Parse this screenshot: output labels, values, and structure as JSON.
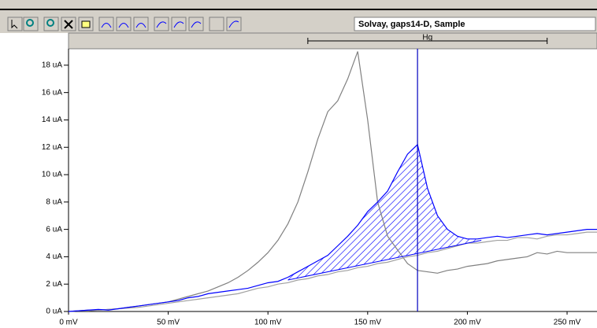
{
  "toolbar": {
    "sample_field": "Solvay, gaps14-D, Sample"
  },
  "chart_data": {
    "type": "line",
    "x": [
      0,
      5,
      10,
      15,
      20,
      25,
      30,
      35,
      40,
      45,
      50,
      55,
      60,
      65,
      70,
      75,
      80,
      85,
      90,
      95,
      100,
      105,
      110,
      115,
      120,
      125,
      130,
      135,
      140,
      145,
      150,
      155,
      160,
      165,
      170,
      175,
      180,
      185,
      190,
      195,
      200,
      205,
      210,
      215,
      220,
      225,
      230,
      235,
      240,
      245,
      250,
      255,
      260,
      265
    ],
    "series": [
      {
        "color": "#808080",
        "values": [
          0,
          0.05,
          0.1,
          0.1,
          0.15,
          0.2,
          0.3,
          0.4,
          0.5,
          0.6,
          0.7,
          0.9,
          1.1,
          1.3,
          1.5,
          1.8,
          2.1,
          2.5,
          3.0,
          3.6,
          4.3,
          5.2,
          6.4,
          8.0,
          10.2,
          12.6,
          14.6,
          15.4,
          17.0,
          19.0,
          14.0,
          8.0,
          5.5,
          4.5,
          3.5,
          3.0,
          2.9,
          2.8,
          3.0,
          3.1,
          3.3,
          3.4,
          3.5,
          3.7,
          3.8,
          3.9,
          4.0,
          4.3,
          4.2,
          4.4,
          4.3,
          4.3,
          4.3,
          4.3
        ]
      },
      {
        "color": "#a0a0a0",
        "values": [
          0,
          0.05,
          0.05,
          0.1,
          0.15,
          0.2,
          0.25,
          0.3,
          0.4,
          0.5,
          0.6,
          0.7,
          0.8,
          0.9,
          1.0,
          1.1,
          1.2,
          1.3,
          1.5,
          1.7,
          1.8,
          2.0,
          2.1,
          2.3,
          2.4,
          2.6,
          2.7,
          2.9,
          3.0,
          3.2,
          3.3,
          3.5,
          3.6,
          3.8,
          4.0,
          4.1,
          4.3,
          4.4,
          4.6,
          4.8,
          5.0,
          5.0,
          5.1,
          5.2,
          5.2,
          5.4,
          5.4,
          5.3,
          5.5,
          5.6,
          5.6,
          5.7,
          5.8,
          5.8
        ]
      },
      {
        "color": "#0000ff",
        "values": [
          0,
          0.05,
          0.1,
          0.15,
          0.1,
          0.2,
          0.3,
          0.4,
          0.5,
          0.6,
          0.7,
          0.8,
          1.0,
          1.1,
          1.3,
          1.4,
          1.5,
          1.6,
          1.7,
          1.9,
          2.1,
          2.2,
          2.5,
          2.9,
          3.3,
          3.7,
          4.1,
          4.8,
          5.5,
          6.3,
          7.3,
          8.0,
          8.8,
          10.2,
          11.5,
          12.2,
          9.0,
          7.0,
          6.0,
          5.5,
          5.3,
          5.3,
          5.4,
          5.5,
          5.4,
          5.5,
          5.6,
          5.7,
          5.6,
          5.7,
          5.8,
          5.9,
          6.0,
          6.0
        ]
      }
    ],
    "baseline": {
      "x": [
        110,
        207
      ],
      "values": [
        2.3,
        5.2
      ],
      "color": "#0000ff"
    },
    "marker_x": 175,
    "peak_label": "Hg",
    "peak_window": [
      120,
      240
    ],
    "xlim": [
      0,
      265
    ],
    "ylim": [
      0,
      19.2
    ],
    "xticks": [
      {
        "value": 0,
        "label": "0 mV"
      },
      {
        "value": 50,
        "label": "50 mV"
      },
      {
        "value": 100,
        "label": "100 mV"
      },
      {
        "value": 150,
        "label": "150 mV"
      },
      {
        "value": 200,
        "label": "200 mV"
      },
      {
        "value": 250,
        "label": "250 mV"
      }
    ],
    "yticks": [
      {
        "value": 0,
        "label": "0 uA"
      },
      {
        "value": 2,
        "label": "2 uA"
      },
      {
        "value": 4,
        "label": "4 uA"
      },
      {
        "value": 6,
        "label": "6 uA"
      },
      {
        "value": 8,
        "label": "8 uA"
      },
      {
        "value": 10,
        "label": "10 uA"
      },
      {
        "value": 12,
        "label": "12 uA"
      },
      {
        "value": 14,
        "label": "14 uA"
      },
      {
        "value": 16,
        "label": "16 uA"
      },
      {
        "value": 18,
        "label": "18 uA"
      }
    ]
  }
}
